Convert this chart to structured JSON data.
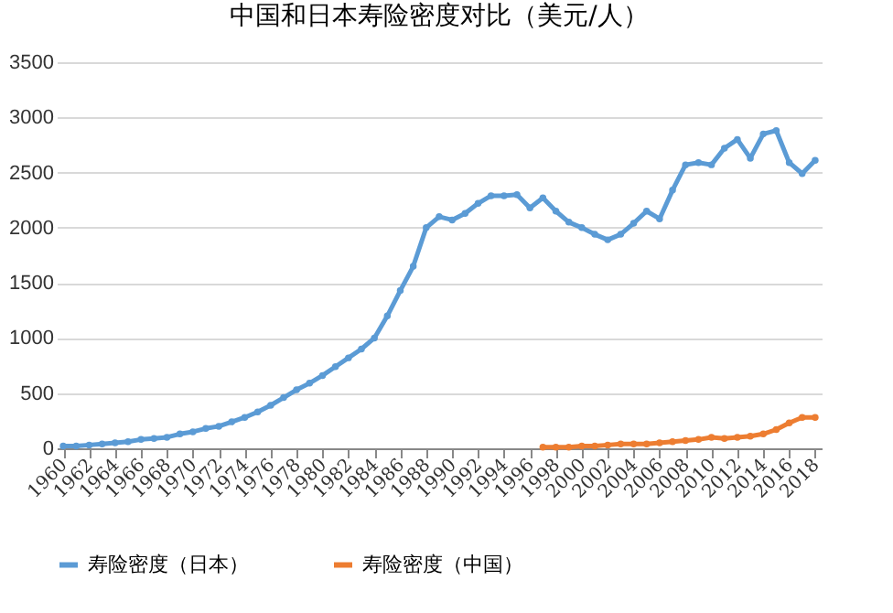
{
  "chart_data": {
    "type": "line",
    "title": "中国和日本寿险密度对比（美元/人）",
    "x": [
      1960,
      1961,
      1962,
      1963,
      1964,
      1965,
      1966,
      1967,
      1968,
      1969,
      1970,
      1971,
      1972,
      1973,
      1974,
      1975,
      1976,
      1977,
      1978,
      1979,
      1980,
      1981,
      1982,
      1983,
      1984,
      1985,
      1986,
      1987,
      1988,
      1989,
      1990,
      1991,
      1992,
      1993,
      1994,
      1995,
      1996,
      1997,
      1998,
      1999,
      2000,
      2001,
      2002,
      2003,
      2004,
      2005,
      2006,
      2007,
      2008,
      2009,
      2010,
      2011,
      2012,
      2013,
      2014,
      2015,
      2016,
      2017,
      2018
    ],
    "series": [
      {
        "name": "寿险密度（日本）",
        "color": "#5b9bd5",
        "values": [
          20,
          20,
          30,
          40,
          50,
          60,
          80,
          90,
          100,
          130,
          150,
          180,
          200,
          240,
          280,
          330,
          390,
          460,
          530,
          590,
          660,
          740,
          820,
          900,
          1000,
          1200,
          1430,
          1650,
          2000,
          2100,
          2070,
          2130,
          2220,
          2290,
          2290,
          2300,
          2180,
          2270,
          2150,
          2050,
          2000,
          1940,
          1890,
          1940,
          2040,
          2150,
          2080,
          2340,
          2570,
          2590,
          2570,
          2720,
          2800,
          2630,
          2850,
          2880,
          2590,
          2490,
          2610
        ]
      },
      {
        "name": "寿险密度（中国）",
        "color": "#ed7d31",
        "x": [
          1997,
          1998,
          1999,
          2000,
          2001,
          2002,
          2003,
          2004,
          2005,
          2006,
          2007,
          2008,
          2009,
          2010,
          2011,
          2012,
          2013,
          2014,
          2015,
          2016,
          2017,
          2018
        ],
        "values": [
          10,
          10,
          10,
          20,
          20,
          30,
          40,
          40,
          40,
          50,
          60,
          70,
          80,
          100,
          90,
          100,
          110,
          130,
          170,
          230,
          280,
          280
        ]
      }
    ],
    "xlim": [
      1959.5,
      2018.5
    ],
    "xticks": [
      1960,
      1962,
      1964,
      1966,
      1968,
      1970,
      1972,
      1974,
      1976,
      1978,
      1980,
      1982,
      1984,
      1986,
      1988,
      1990,
      1992,
      1994,
      1996,
      1998,
      2000,
      2002,
      2004,
      2006,
      2008,
      2010,
      2012,
      2014,
      2016,
      2018
    ],
    "ylim": [
      0,
      3500
    ],
    "yticks": [
      0,
      500,
      1000,
      1500,
      2000,
      2500,
      3000,
      3500
    ],
    "grid": "y",
    "legend": "bottom",
    "marker": "circle",
    "line_style": "solid"
  }
}
